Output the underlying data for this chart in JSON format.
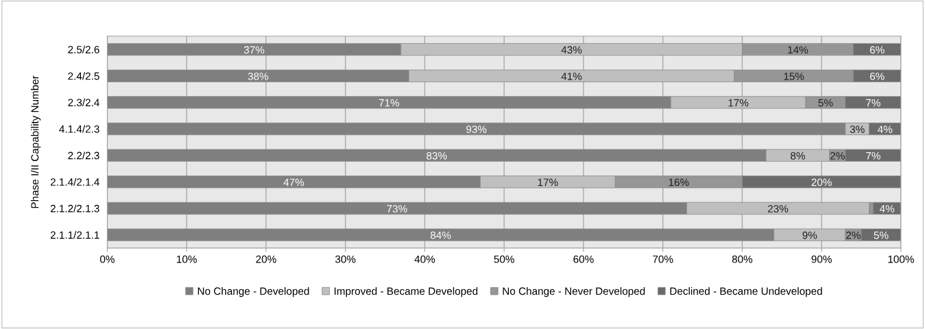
{
  "chart_data": {
    "type": "bar",
    "orientation": "horizontal",
    "stacked": true,
    "ylabel": "Phase I/II Capability Number",
    "categories": [
      "2.5/2.6",
      "2.4/2.5",
      "2.3/2.4",
      "4.1.4/2.3",
      "2.2/2.3",
      "2.1.4/2.1.4",
      "2.1.2/2.1.3",
      "2.1.1/2.1.1"
    ],
    "series": [
      {
        "name": "No Change - Developed",
        "color": "#7f7f7f",
        "values": [
          37,
          38,
          71,
          93,
          83,
          47,
          73,
          84
        ],
        "value_labels": [
          "37%",
          "38%",
          "71%",
          "93%",
          "83%",
          "47%",
          "73%",
          "84%"
        ]
      },
      {
        "name": "Improved - Became Developed",
        "color": "#bfbfbf",
        "values": [
          43,
          41,
          17,
          3,
          8,
          17,
          23,
          9
        ],
        "value_labels": [
          "43%",
          "41%",
          "17%",
          "3%",
          "8%",
          "17%",
          "23%",
          "9%"
        ]
      },
      {
        "name": "No Change - Never Developed",
        "color": "#969696",
        "values": [
          14,
          15,
          5,
          0,
          2,
          16,
          0.5,
          2
        ],
        "value_labels": [
          "14%",
          "15%",
          "5%",
          null,
          "2%",
          "16%",
          null,
          "2%"
        ]
      },
      {
        "name": "Declined - Became Undeveloped",
        "color": "#6b6b6b",
        "values": [
          6,
          6,
          7,
          4,
          7,
          20,
          3.5,
          5
        ],
        "value_labels": [
          "6%",
          "6%",
          "7%",
          "4%",
          "7%",
          "20%",
          "4%",
          "5%"
        ]
      }
    ],
    "xlim": [
      0,
      100
    ],
    "xticks": [
      {
        "value": 0,
        "label": "0%"
      },
      {
        "value": 10,
        "label": "10%"
      },
      {
        "value": 20,
        "label": "20%"
      },
      {
        "value": 30,
        "label": "30%"
      },
      {
        "value": 40,
        "label": "40%"
      },
      {
        "value": 50,
        "label": "50%"
      },
      {
        "value": 60,
        "label": "60%"
      },
      {
        "value": 70,
        "label": "70%"
      },
      {
        "value": 80,
        "label": "80%"
      },
      {
        "value": 90,
        "label": "90%"
      },
      {
        "value": 100,
        "label": "100%"
      }
    ],
    "grid": "x",
    "legend": "bottom"
  }
}
